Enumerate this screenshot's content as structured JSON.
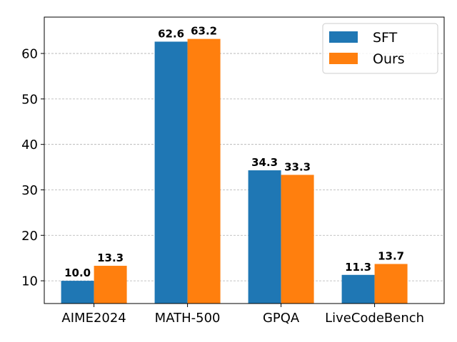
{
  "chart_data": {
    "type": "bar",
    "title": "",
    "xlabel": "",
    "ylabel": "",
    "categories": [
      "AIME2024",
      "MATH-500",
      "GPQA",
      "LiveCodeBench"
    ],
    "series": [
      {
        "name": "SFT",
        "color": "#1f77b4",
        "values": [
          10.0,
          62.6,
          34.3,
          11.3
        ],
        "labels": [
          "10.0",
          "62.6",
          "34.3",
          "11.3"
        ]
      },
      {
        "name": "Ours",
        "color": "#ff7f0e",
        "values": [
          13.3,
          63.2,
          33.3,
          13.7
        ],
        "labels": [
          "13.3",
          "63.2",
          "33.3",
          "13.7"
        ]
      }
    ],
    "ylim": [
      5,
      68
    ],
    "yticks": [
      10,
      20,
      30,
      40,
      50,
      60
    ],
    "ytick_labels": [
      "10",
      "20",
      "30",
      "40",
      "50",
      "60"
    ],
    "grid": true,
    "grid_axis": "y",
    "legend": "top-right"
  }
}
